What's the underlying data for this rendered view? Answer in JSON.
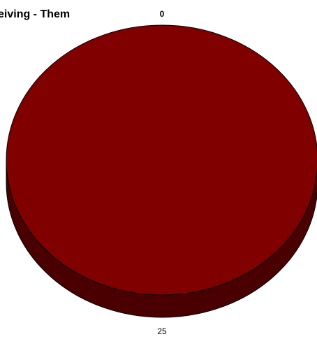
{
  "chart_data": {
    "type": "pie",
    "title": "eiving - Them",
    "slices": [
      {
        "label": "0",
        "value": 0
      },
      {
        "label": "25",
        "value": 25
      }
    ],
    "colors": {
      "top": "#800000",
      "side": "#4a0000",
      "outline": "#000000"
    }
  }
}
